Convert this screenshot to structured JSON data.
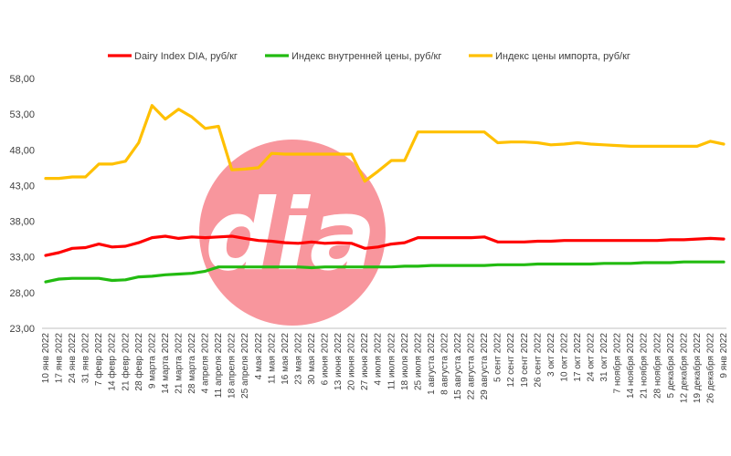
{
  "chart_data": {
    "type": "line",
    "logo_text": "dia",
    "legend": "top",
    "grid": false,
    "ylim": [
      23,
      58
    ],
    "yticks": [
      "23,00",
      "28,00",
      "33,00",
      "38,00",
      "43,00",
      "48,00",
      "53,00",
      "58,00"
    ],
    "ytick_values": [
      23,
      28,
      33,
      38,
      43,
      48,
      53,
      58
    ],
    "categories": [
      "10 янв 2022",
      "17 янв 2022",
      "24 янв 2022",
      "31 янв 2022",
      "7 февр 2022",
      "14 февр 2022",
      "21 февр 2022",
      "28 февр 2022",
      "9 марта 2022",
      "14 марта 2022",
      "21 марта 2022",
      "28 марта 2022",
      "4 апреля 2022",
      "11 апреля 2022",
      "18 апреля 2022",
      "25 апреля 2022",
      "4 мая 2022",
      "11 мая 2022",
      "16 мая 2022",
      "23 мая 2022",
      "30 мая 2022",
      "6 июня 2022",
      "13 июня 2022",
      "20 июня 2022",
      "27 июня 2022",
      "4 июля 2022",
      "11 июля 2022",
      "18 июля 2022",
      "25 июля 2022",
      "1 августа 2022",
      "8 августа 2022",
      "15 августа 2022",
      "22 августа 2022",
      "29 августа 2022",
      "5 сент 2022",
      "12 сент 2022",
      "19 сент 2022",
      "26 сент 2022",
      "3 окт 2022",
      "10 окт 2022",
      "17 окт 2022",
      "24 окт 2022",
      "31 окт 2022",
      "7 ноября 2022",
      "14 ноября 2022",
      "21 ноября 2022",
      "28 ноября 2022",
      "5 декабря 2022",
      "12 декабря 2022",
      "19 декабря 2022",
      "26 декабря 2022",
      "9 янв 2022"
    ],
    "series": [
      {
        "name": "Dairy Index DIA,  руб/кг",
        "color": "#ff0000",
        "values": [
          33.2,
          33.6,
          34.2,
          34.3,
          34.8,
          34.4,
          34.5,
          35.0,
          35.7,
          35.9,
          35.6,
          35.8,
          35.7,
          35.8,
          35.9,
          35.6,
          35.3,
          35.2,
          35.0,
          34.9,
          35.1,
          34.9,
          35.0,
          34.9,
          34.2,
          34.4,
          34.8,
          35.0,
          35.7,
          35.7,
          35.7,
          35.7,
          35.7,
          35.8,
          35.1,
          35.1,
          35.1,
          35.2,
          35.2,
          35.3,
          35.3,
          35.3,
          35.3,
          35.3,
          35.3,
          35.3,
          35.3,
          35.4,
          35.4,
          35.5,
          35.6,
          35.5
        ]
      },
      {
        "name": "Индекс внутренней цены, руб/кг",
        "color": "#22bb11",
        "values": [
          29.5,
          29.9,
          30.0,
          30.0,
          30.0,
          29.7,
          29.8,
          30.2,
          30.3,
          30.5,
          30.6,
          30.7,
          31.0,
          31.6,
          31.6,
          31.6,
          31.6,
          31.6,
          31.6,
          31.6,
          31.5,
          31.6,
          31.6,
          31.6,
          31.6,
          31.6,
          31.6,
          31.7,
          31.7,
          31.8,
          31.8,
          31.8,
          31.8,
          31.8,
          31.9,
          31.9,
          31.9,
          32.0,
          32.0,
          32.0,
          32.0,
          32.0,
          32.1,
          32.1,
          32.1,
          32.2,
          32.2,
          32.2,
          32.3,
          32.3,
          32.3,
          32.3
        ]
      },
      {
        "name": "Индекс цены импорта, руб/кг",
        "color": "#ffc000",
        "values": [
          44.0,
          44.0,
          44.2,
          44.2,
          46.0,
          46.0,
          46.4,
          49.0,
          54.2,
          52.3,
          53.7,
          52.6,
          51.0,
          51.3,
          45.2,
          45.3,
          45.5,
          47.5,
          47.4,
          47.4,
          47.4,
          47.4,
          47.4,
          47.4,
          43.6,
          45.0,
          46.5,
          46.5,
          50.5,
          50.5,
          50.5,
          50.5,
          50.5,
          50.5,
          49.0,
          49.1,
          49.1,
          49.0,
          48.7,
          48.8,
          49.0,
          48.8,
          48.7,
          48.6,
          48.5,
          48.5,
          48.5,
          48.5,
          48.5,
          48.5,
          49.2,
          48.8
        ]
      }
    ]
  }
}
